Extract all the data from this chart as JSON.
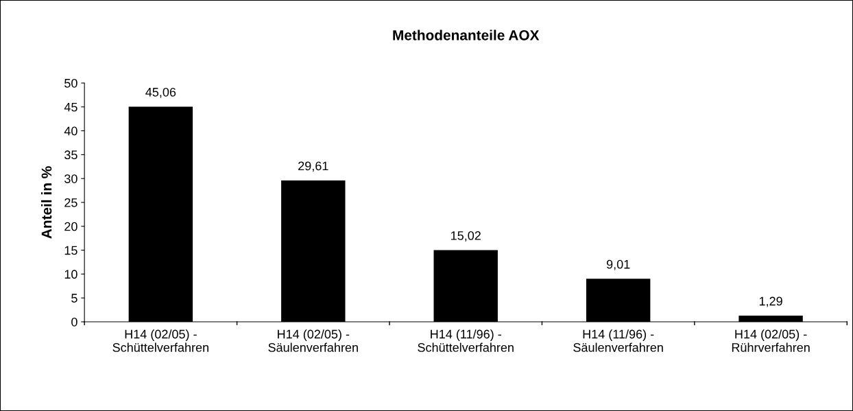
{
  "chart_data": {
    "type": "bar",
    "title": "Methodenanteile AOX",
    "ylabel": "Anteil in %",
    "categories": [
      "H14 (02/05) -\nSchüttelverfahren",
      "H14 (02/05) -\nSäulenverfahren",
      "H14 (11/96) -\nSchüttelverfahren",
      "H14 (11/96) -\nSäulenverfahren",
      "H14 (02/05) -\nRührverfahren"
    ],
    "values": [
      45.06,
      29.61,
      15.02,
      9.01,
      1.29
    ],
    "value_labels": [
      "45,06",
      "29,61",
      "15,02",
      "9,01",
      "1,29"
    ],
    "color": "#000000",
    "ylim": [
      0,
      50
    ],
    "yticks": [
      0,
      5,
      10,
      15,
      20,
      25,
      30,
      35,
      40,
      45,
      50
    ],
    "grid": false,
    "legend": false
  }
}
